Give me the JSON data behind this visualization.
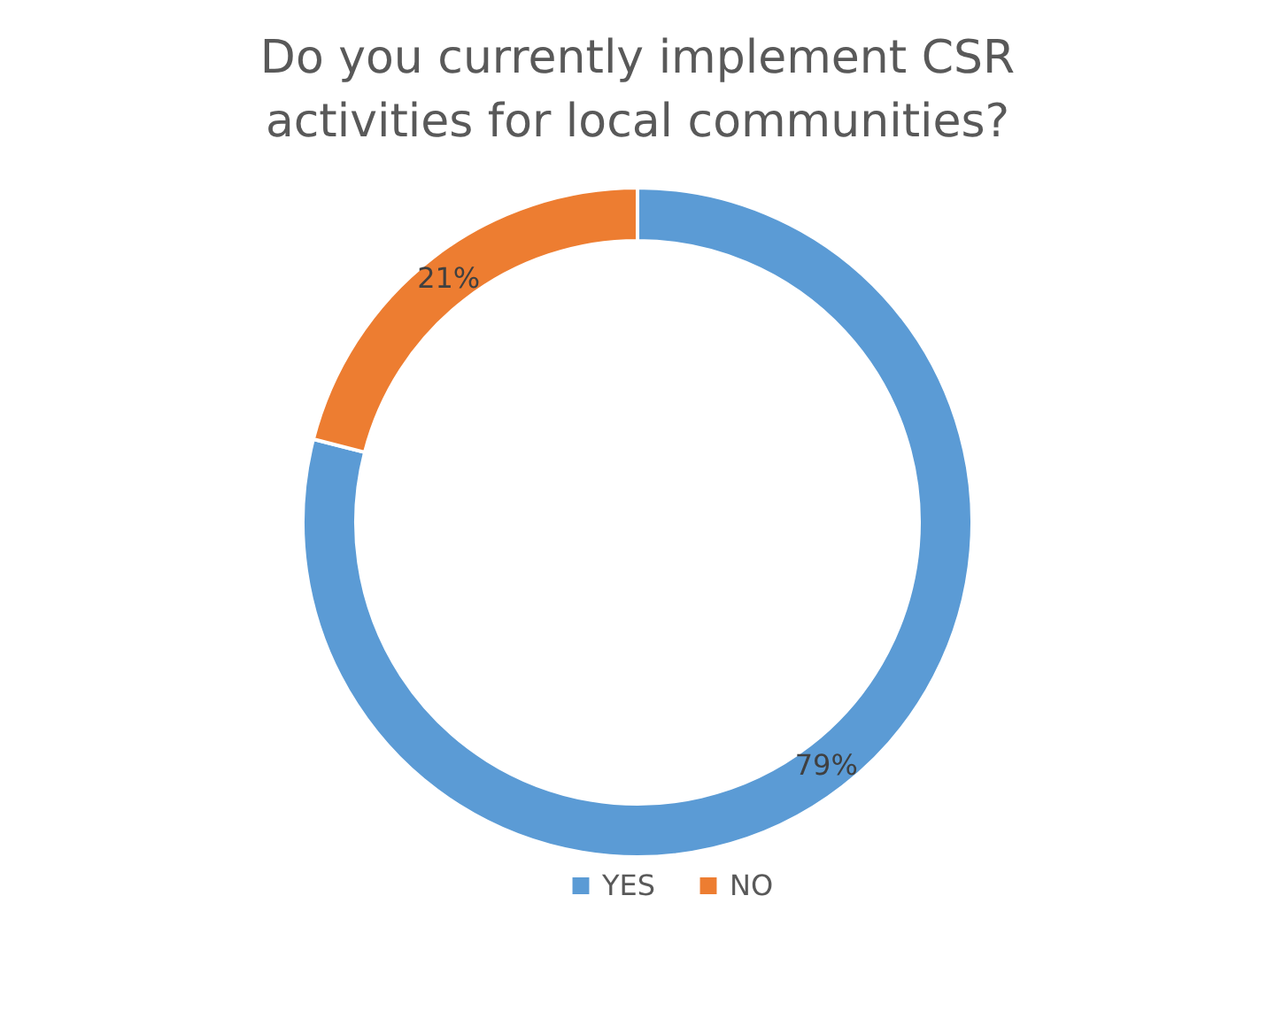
{
  "chart_data": {
    "type": "donut",
    "title": "Do you currently implement CSR activities for local communities?",
    "categories": [
      "YES",
      "NO"
    ],
    "values": [
      79,
      21
    ],
    "colors": [
      "#5b9bd5",
      "#ed7d31"
    ],
    "value_labels": [
      "79%",
      "21%"
    ],
    "legend": "bottom"
  }
}
